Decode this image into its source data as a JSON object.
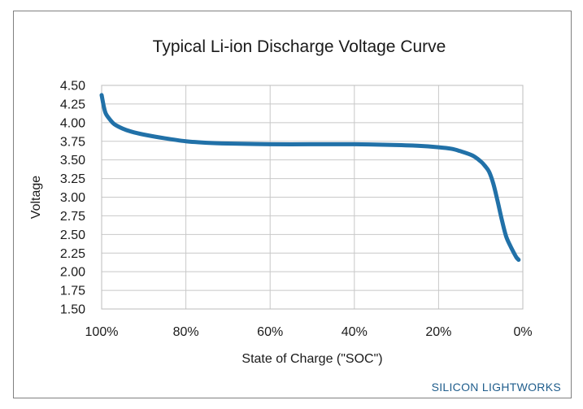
{
  "colors": {
    "curve": "#2171a8",
    "brand": "#1f5d8c"
  },
  "brand": "SILICON LIGHTWORKS",
  "chart_data": {
    "type": "line",
    "title": "Typical Li-ion Discharge Voltage Curve",
    "xlabel": "State of Charge (\"SOC\")",
    "ylabel": "Voltage",
    "x_reversed": true,
    "xlim": [
      100,
      0
    ],
    "ylim": [
      1.5,
      4.5
    ],
    "x_ticks": [
      100,
      80,
      60,
      40,
      20,
      0
    ],
    "x_tick_labels": [
      "100%",
      "80%",
      "60%",
      "40%",
      "20%",
      "0%"
    ],
    "y_ticks": [
      1.5,
      1.75,
      2.0,
      2.25,
      2.5,
      2.75,
      3.0,
      3.25,
      3.5,
      3.75,
      4.0,
      4.25,
      4.5
    ],
    "y_tick_labels": [
      "1.50",
      "1.75",
      "2.00",
      "2.25",
      "2.50",
      "2.75",
      "3.00",
      "3.25",
      "3.50",
      "3.75",
      "4.00",
      "4.25",
      "4.50"
    ],
    "grid": true,
    "legend": "none",
    "series": [
      {
        "x": [
          100,
          99.5,
          99,
          98,
          97,
          95,
          93,
          90,
          85,
          80,
          75,
          70,
          60,
          50,
          40,
          30,
          25,
          20,
          17,
          15,
          12,
          10,
          9,
          8,
          7,
          6,
          5,
          4,
          3,
          2,
          1.5,
          1
        ],
        "y": [
          4.37,
          4.22,
          4.12,
          4.04,
          3.98,
          3.92,
          3.88,
          3.84,
          3.79,
          3.75,
          3.73,
          3.72,
          3.71,
          3.71,
          3.71,
          3.7,
          3.69,
          3.67,
          3.65,
          3.62,
          3.56,
          3.48,
          3.42,
          3.34,
          3.18,
          2.95,
          2.7,
          2.48,
          2.35,
          2.24,
          2.19,
          2.16
        ]
      }
    ]
  }
}
